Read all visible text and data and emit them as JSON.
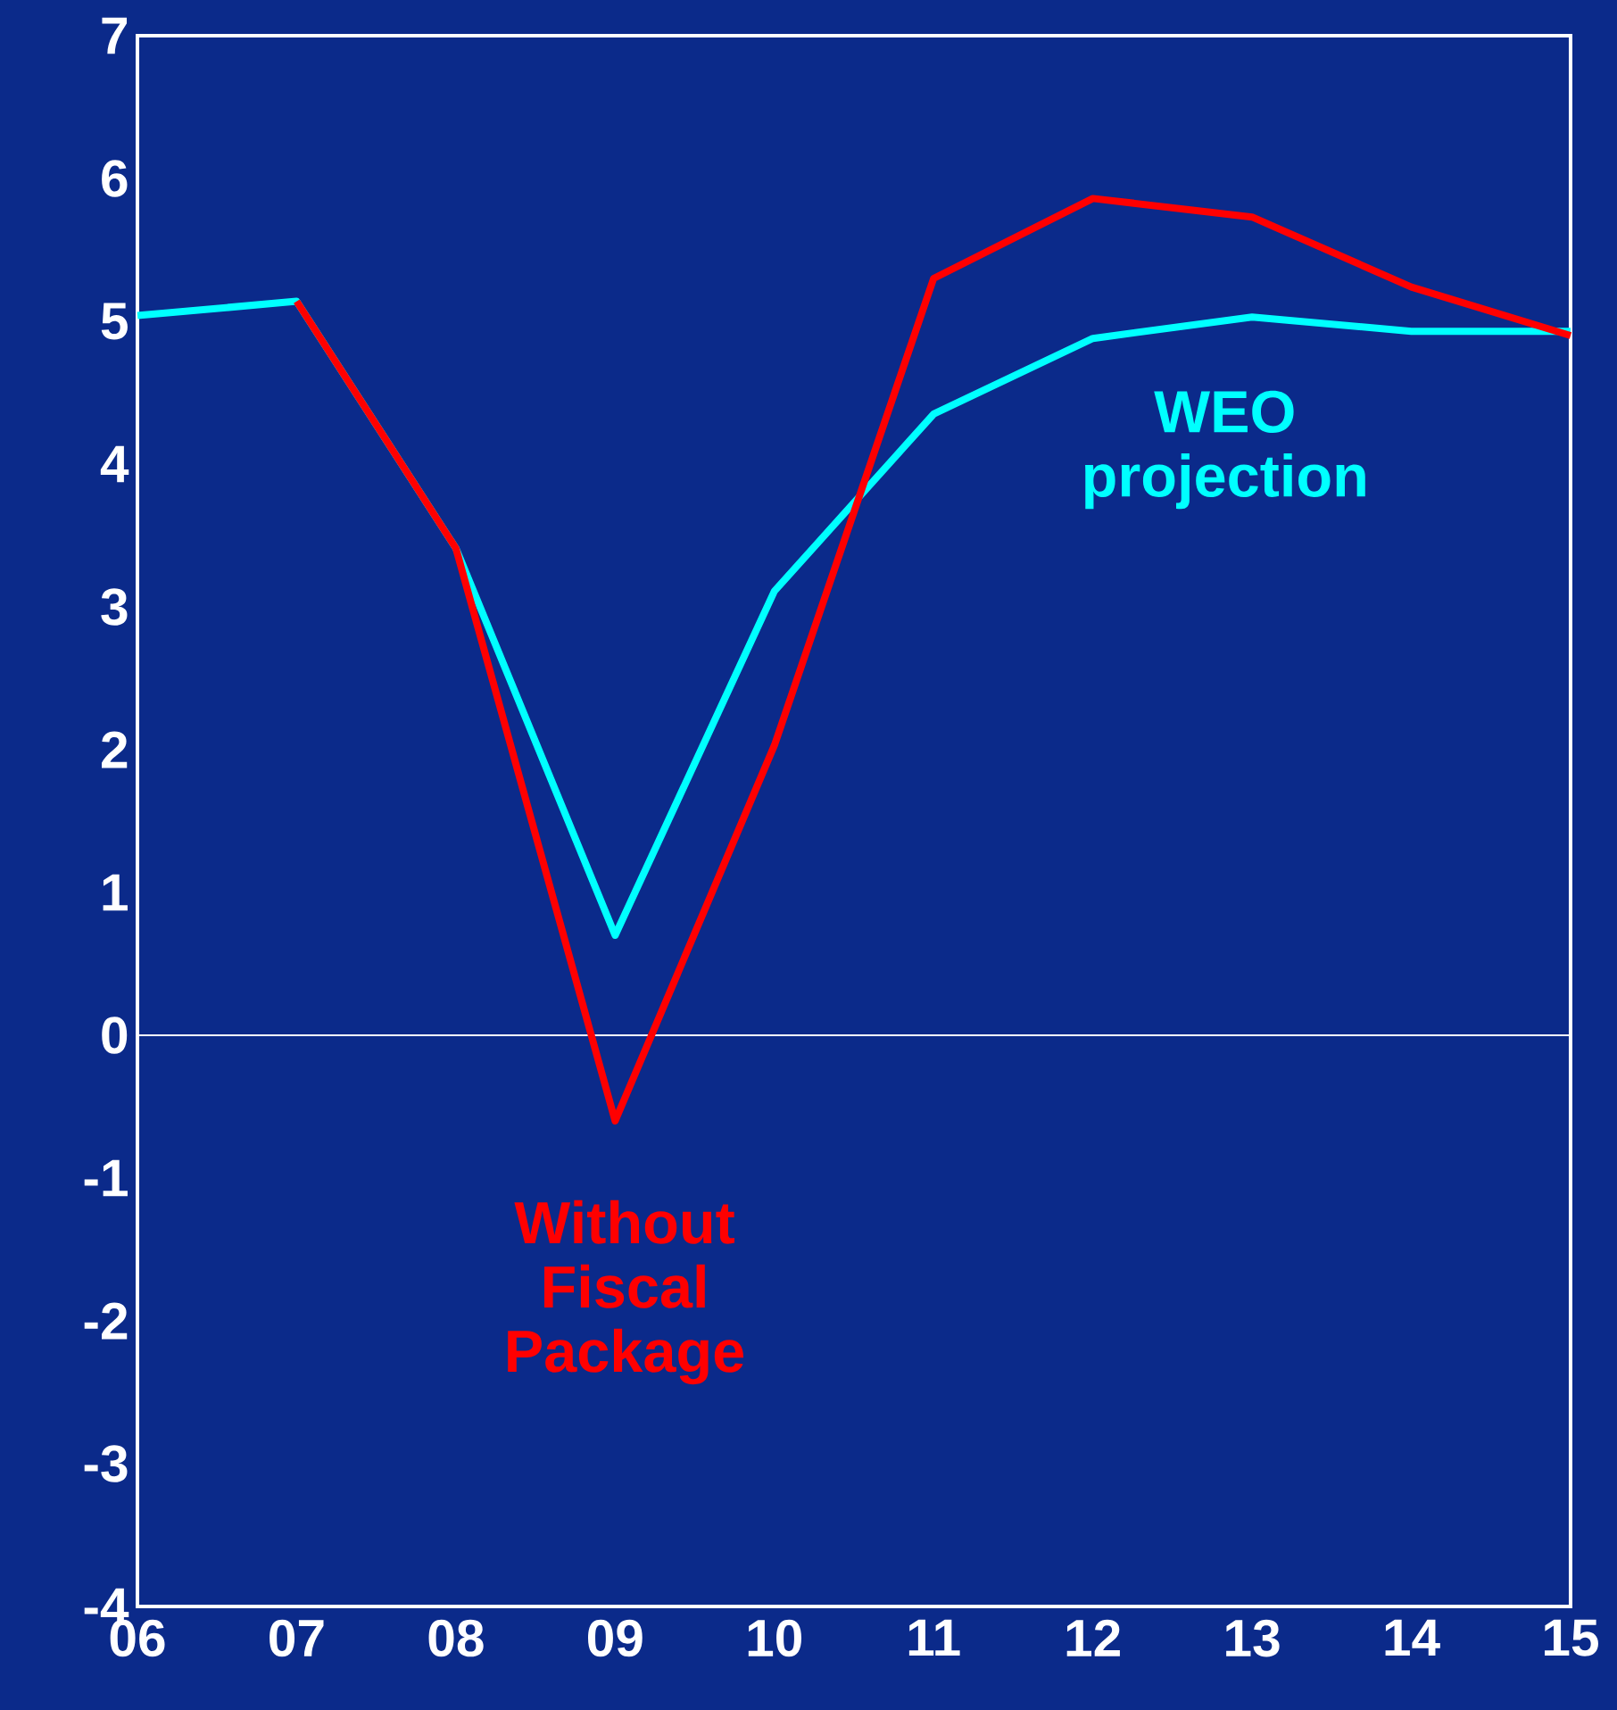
{
  "chart_data": {
    "type": "line",
    "categories": [
      "06",
      "07",
      "08",
      "09",
      "10",
      "11",
      "12",
      "13",
      "14",
      "15"
    ],
    "series": [
      {
        "name": "WEO projection",
        "color": "#00ffff",
        "values": [
          5.04,
          5.14,
          3.41,
          0.7,
          3.11,
          4.35,
          4.88,
          5.03,
          4.93,
          4.93
        ]
      },
      {
        "name": "Without Fiscal Package",
        "color": "#ff0000",
        "values": [
          null,
          5.14,
          3.41,
          -0.6,
          2.03,
          5.3,
          5.86,
          5.73,
          5.24,
          4.9
        ]
      }
    ],
    "ylim": [
      -4,
      7
    ],
    "yticks": [
      -4,
      -3,
      -2,
      -1,
      0,
      1,
      2,
      3,
      4,
      5,
      6,
      7
    ],
    "ref_lines": [
      {
        "axis": "y",
        "value": 0,
        "color": "#ffffff"
      }
    ],
    "grid": false,
    "legend": false,
    "marker": "none",
    "line_style": "solid"
  }
}
